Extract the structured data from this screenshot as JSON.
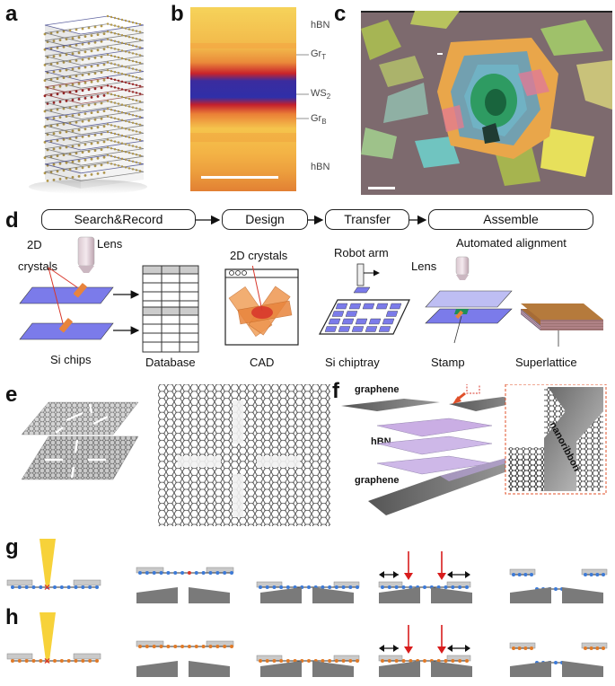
{
  "panels": {
    "a": "a",
    "b": "b",
    "c": "c",
    "d": "d",
    "e": "e",
    "f": "f",
    "g": "g",
    "h": "h"
  },
  "panel_b": {
    "hbn_top": "hBN",
    "gr_top": "Gr",
    "gr_top_sub": "T",
    "ws2": "WS",
    "ws2_sub": "2",
    "gr_bottom": "Gr",
    "gr_bottom_sub": "B",
    "hbn_bottom": "hBN"
  },
  "panel_d": {
    "steps": [
      "Search&Record",
      "Design",
      "Transfer",
      "Assemble"
    ],
    "crystals_2d_a": "2D",
    "crystals_2d_b": "crystals",
    "lens1": "Lens",
    "si_chips": "Si chips",
    "database": "Database",
    "crystals_2d_cad": "2D crystals",
    "cad": "CAD",
    "robot_arm": "Robot arm",
    "si_chiptray": "Si chiptray",
    "automated_alignment": "Automated alignment",
    "lens2": "Lens",
    "stamp": "Stamp",
    "superlattice": "Superlattice"
  },
  "panel_f": {
    "graphene_top": "graphene",
    "hbn": "hBN",
    "graphene_bottom": "graphene",
    "nanoribbon": "nanoribbon"
  },
  "colors": {
    "chip_blue": "#7b7bea",
    "crystal_orange": "#e8843c",
    "crystal_red": "#d8382c",
    "ws2_blue": "#2b2b9c",
    "ws2_red": "#c21e2a",
    "hbn_yellow": "#f3c54a",
    "stamp_green": "#1e8e5a",
    "arrow_red": "#d81c1c",
    "beam_yellow": "#f7d23a",
    "chain_blue": "#3d7ad6",
    "chain_orange": "#e07a28",
    "electrode_gray": "#7a7a7a"
  }
}
